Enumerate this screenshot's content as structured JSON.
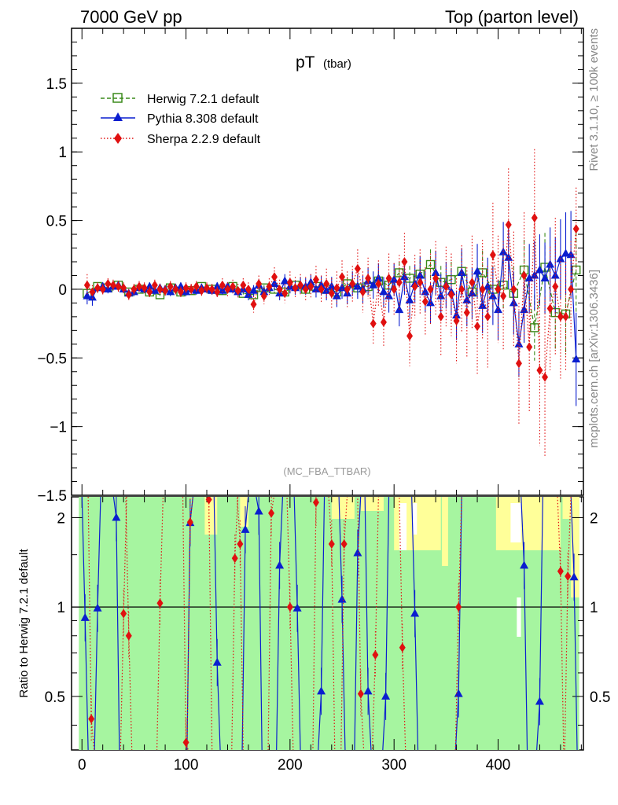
{
  "header": {
    "left": "7000 GeV pp",
    "right": "Top (parton level)"
  },
  "side_text": {
    "rivet": "Rivet 3.1.10, ≥ 100k events",
    "mcplots": "mcplots.cern.ch [arXiv:1306.3436]"
  },
  "chart_data": [
    {
      "type": "line",
      "title": "pT",
      "title_sub": "(tbar)",
      "watermark": "(MC_FBA_TTBAR)",
      "xlim": [
        -10,
        482
      ],
      "ylim": [
        -1.5,
        1.9
      ],
      "yticks": [
        "1.5",
        "1",
        "0.5",
        "0",
        "−0.5",
        "−1",
        "−1.5"
      ],
      "ytick_values": [
        1.5,
        1,
        0.5,
        0,
        -0.5,
        -1,
        -1.5
      ],
      "legend_position": "top-left",
      "series": [
        {
          "name": "Herwig 7.2.1 default",
          "color": "#3a8a1a",
          "marker": "open-square",
          "line": "dashed",
          "x": [
            5,
            15,
            25,
            35,
            45,
            55,
            65,
            75,
            85,
            95,
            105,
            115,
            125,
            135,
            145,
            155,
            165,
            175,
            185,
            195,
            205,
            215,
            225,
            235,
            245,
            255,
            265,
            275,
            285,
            295,
            305,
            315,
            325,
            335,
            345,
            355,
            365,
            375,
            385,
            395,
            405,
            415,
            425,
            435,
            445,
            455,
            465,
            475
          ],
          "y": [
            -0.03,
            0.02,
            0.01,
            0.03,
            -0.02,
            0.0,
            -0.02,
            -0.04,
            0.01,
            -0.02,
            -0.01,
            0.02,
            0.0,
            -0.01,
            0.02,
            -0.03,
            -0.04,
            0.01,
            0.0,
            -0.02,
            0.03,
            0.0,
            0.02,
            0.0,
            -0.02,
            0.04,
            0.01,
            0.02,
            0.06,
            0.03,
            0.12,
            0.08,
            0.11,
            0.18,
            0.05,
            0.07,
            0.13,
            -0.02,
            0.12,
            0.0,
            0.03,
            -0.03,
            0.14,
            -0.28,
            0.16,
            -0.17,
            -0.18,
            0.14
          ],
          "err": [
            0.02,
            0.02,
            0.02,
            0.02,
            0.02,
            0.02,
            0.02,
            0.02,
            0.02,
            0.02,
            0.02,
            0.02,
            0.02,
            0.02,
            0.02,
            0.02,
            0.02,
            0.02,
            0.03,
            0.03,
            0.03,
            0.03,
            0.04,
            0.04,
            0.04,
            0.05,
            0.05,
            0.06,
            0.07,
            0.07,
            0.08,
            0.09,
            0.1,
            0.11,
            0.12,
            0.13,
            0.14,
            0.15,
            0.16,
            0.17,
            0.18,
            0.2,
            0.22,
            0.24,
            0.25,
            0.27,
            0.3,
            0.32
          ]
        },
        {
          "name": "Pythia 8.308 default",
          "color": "#0a1ecf",
          "marker": "filled-triangle",
          "line": "solid",
          "x": [
            5,
            10,
            15,
            20,
            25,
            30,
            35,
            40,
            45,
            50,
            55,
            60,
            65,
            70,
            75,
            80,
            85,
            90,
            95,
            100,
            105,
            110,
            115,
            120,
            125,
            130,
            135,
            140,
            145,
            150,
            155,
            160,
            165,
            170,
            175,
            180,
            185,
            190,
            195,
            200,
            205,
            210,
            215,
            220,
            225,
            230,
            235,
            240,
            245,
            250,
            255,
            260,
            265,
            270,
            275,
            280,
            285,
            290,
            295,
            300,
            305,
            310,
            315,
            320,
            325,
            330,
            335,
            340,
            345,
            350,
            355,
            360,
            365,
            370,
            375,
            380,
            385,
            390,
            395,
            400,
            405,
            410,
            415,
            420,
            425,
            430,
            435,
            440,
            445,
            450,
            455,
            460,
            465,
            470,
            475
          ],
          "y": [
            -0.05,
            -0.06,
            0.01,
            0.02,
            0.0,
            0.02,
            0.03,
            0.0,
            -0.03,
            -0.02,
            0.01,
            0.0,
            0.02,
            -0.01,
            0.01,
            0.0,
            -0.02,
            0.01,
            0.02,
            -0.02,
            0.0,
            -0.01,
            0.01,
            0.0,
            -0.01,
            0.02,
            -0.01,
            0.02,
            0.0,
            -0.02,
            0.0,
            -0.04,
            -0.01,
            0.03,
            -0.02,
            0.01,
            0.04,
            -0.03,
            0.06,
            0.02,
            0.01,
            0.03,
            0.02,
            0.05,
            0.0,
            0.03,
            -0.01,
            0.02,
            -0.05,
            0.01,
            -0.03,
            0.04,
            0.02,
            0.0,
            0.06,
            0.03,
            0.08,
            -0.02,
            -0.05,
            0.07,
            -0.15,
            0.09,
            -0.08,
            0.04,
            0.1,
            -0.02,
            -0.1,
            0.12,
            -0.05,
            0.03,
            -0.02,
            -0.19,
            0.12,
            -0.08,
            -0.03,
            0.13,
            -0.12,
            0.02,
            -0.05,
            -0.15,
            0.27,
            0.23,
            -0.1,
            -0.4,
            -0.15,
            0.08,
            0.1,
            0.14,
            0.08,
            0.18,
            0.1,
            0.22,
            0.26,
            0.25,
            -0.51
          ],
          "err": [
            0.06,
            0.06,
            0.03,
            0.03,
            0.03,
            0.03,
            0.03,
            0.03,
            0.03,
            0.03,
            0.03,
            0.03,
            0.03,
            0.03,
            0.03,
            0.03,
            0.03,
            0.03,
            0.03,
            0.03,
            0.03,
            0.03,
            0.03,
            0.03,
            0.03,
            0.03,
            0.03,
            0.03,
            0.03,
            0.03,
            0.03,
            0.04,
            0.04,
            0.04,
            0.04,
            0.04,
            0.05,
            0.05,
            0.05,
            0.05,
            0.05,
            0.06,
            0.06,
            0.06,
            0.06,
            0.07,
            0.07,
            0.07,
            0.08,
            0.08,
            0.08,
            0.09,
            0.09,
            0.1,
            0.1,
            0.1,
            0.11,
            0.11,
            0.12,
            0.12,
            0.12,
            0.13,
            0.13,
            0.14,
            0.14,
            0.15,
            0.15,
            0.16,
            0.16,
            0.17,
            0.17,
            0.18,
            0.18,
            0.19,
            0.19,
            0.2,
            0.2,
            0.21,
            0.21,
            0.22,
            0.22,
            0.23,
            0.23,
            0.24,
            0.24,
            0.25,
            0.25,
            0.26,
            0.26,
            0.27,
            0.28,
            0.29,
            0.3,
            0.32,
            0.34
          ]
        },
        {
          "name": "Sherpa 2.2.9 default",
          "color": "#e01010",
          "marker": "filled-diamond",
          "line": "dotted",
          "x": [
            5,
            10,
            15,
            20,
            25,
            30,
            35,
            40,
            45,
            50,
            55,
            60,
            65,
            70,
            75,
            80,
            85,
            90,
            95,
            100,
            105,
            110,
            115,
            120,
            125,
            130,
            135,
            140,
            145,
            150,
            155,
            160,
            165,
            170,
            175,
            180,
            185,
            190,
            195,
            200,
            205,
            210,
            215,
            220,
            225,
            230,
            235,
            240,
            245,
            250,
            255,
            260,
            265,
            270,
            275,
            280,
            285,
            290,
            295,
            300,
            305,
            310,
            315,
            320,
            325,
            330,
            335,
            340,
            345,
            350,
            355,
            360,
            365,
            370,
            375,
            380,
            385,
            390,
            395,
            400,
            405,
            410,
            415,
            420,
            425,
            430,
            435,
            440,
            445,
            450,
            455,
            460,
            465,
            470,
            475
          ],
          "y": [
            0.03,
            -0.02,
            0.01,
            0.0,
            0.04,
            0.03,
            0.02,
            0.01,
            -0.04,
            0.0,
            0.02,
            0.01,
            -0.02,
            0.03,
            0.0,
            -0.01,
            0.02,
            0.0,
            -0.02,
            0.01,
            0.0,
            0.02,
            -0.01,
            0.01,
            0.0,
            -0.02,
            0.03,
            0.0,
            0.02,
            -0.01,
            0.03,
            0.0,
            -0.11,
            0.04,
            -0.05,
            0.02,
            0.09,
            0.0,
            -0.03,
            0.05,
            0.01,
            0.03,
            0.0,
            0.02,
            0.07,
            0.0,
            0.04,
            -0.03,
            0.01,
            0.09,
            0.0,
            0.04,
            0.15,
            -0.02,
            0.08,
            -0.25,
            0.04,
            -0.24,
            0.08,
            0.0,
            0.05,
            0.2,
            -0.34,
            0.02,
            0.05,
            -0.09,
            0.0,
            0.08,
            -0.2,
            0.02,
            -0.04,
            -0.23,
            0.0,
            -0.17,
            0.05,
            -0.27,
            0.0,
            -0.2,
            0.25,
            0.0,
            -0.05,
            0.47,
            0.0,
            -0.54,
            0.1,
            -0.42,
            0.52,
            -0.59,
            -0.64,
            -0.14,
            0.02,
            -0.2,
            -0.2,
            0.0,
            0.44
          ],
          "err": [
            0.08,
            0.05,
            0.04,
            0.04,
            0.04,
            0.04,
            0.04,
            0.04,
            0.04,
            0.04,
            0.04,
            0.04,
            0.04,
            0.04,
            0.04,
            0.04,
            0.04,
            0.04,
            0.04,
            0.04,
            0.04,
            0.04,
            0.04,
            0.04,
            0.04,
            0.04,
            0.05,
            0.05,
            0.05,
            0.05,
            0.05,
            0.05,
            0.06,
            0.06,
            0.06,
            0.06,
            0.07,
            0.07,
            0.07,
            0.08,
            0.08,
            0.08,
            0.09,
            0.09,
            0.1,
            0.1,
            0.11,
            0.11,
            0.12,
            0.12,
            0.13,
            0.13,
            0.14,
            0.15,
            0.15,
            0.16,
            0.17,
            0.18,
            0.18,
            0.19,
            0.2,
            0.21,
            0.22,
            0.23,
            0.24,
            0.25,
            0.26,
            0.27,
            0.28,
            0.29,
            0.3,
            0.31,
            0.32,
            0.33,
            0.34,
            0.35,
            0.36,
            0.37,
            0.38,
            0.39,
            0.4,
            0.41,
            0.42,
            0.44,
            0.46,
            0.48,
            0.5,
            0.55,
            0.58,
            0.45,
            0.5,
            0.45,
            0.4,
            0.35,
            0.3
          ]
        }
      ]
    },
    {
      "type": "line",
      "ylabel": "Ratio to Herwig 7.2.1 default",
      "xlim": [
        -10,
        482
      ],
      "ylim": [
        0.33,
        2.35
      ],
      "yticks": [
        "2",
        "1",
        "0.5"
      ],
      "ytick_values": [
        2,
        1,
        0.5
      ],
      "xticks": [
        "0",
        "100",
        "200",
        "300",
        "400"
      ],
      "xtick_values": [
        0,
        100,
        200,
        300,
        400
      ],
      "reference_line": 1,
      "bands": {
        "inner_color": "#a6f5a0",
        "outer_color": "#ffff99",
        "description": "MC uncertainty bands spanning most of the range"
      },
      "series": [
        {
          "name": "Pythia 8.308 default",
          "color": "#0a1ecf",
          "x": [
            3,
            15,
            33,
            104,
            130,
            157,
            170,
            190,
            207,
            230,
            250,
            265,
            275,
            292,
            320,
            362,
            425,
            440,
            473
          ],
          "y": [
            0.92,
            0.99,
            2.0,
            1.92,
            0.65,
            1.82,
            2.1,
            1.38,
            0.99,
            0.52,
            1.06,
            1.52,
            0.52,
            0.5,
            0.95,
            0.51,
            1.38,
            0.48,
            1.26
          ]
        },
        {
          "name": "Sherpa 2.2.9 default",
          "color": "#e01010",
          "x": [
            9,
            40,
            45,
            75,
            100,
            104,
            122,
            147,
            152,
            182,
            200,
            225,
            240,
            252,
            268,
            282,
            308,
            362,
            460,
            467
          ],
          "y": [
            0.42,
            0.95,
            0.8,
            1.03,
            0.35,
            1.93,
            2.3,
            1.46,
            1.63,
            2.07,
            1.0,
            2.25,
            1.63,
            1.63,
            0.51,
            0.69,
            0.73,
            1.0,
            1.32,
            1.27
          ]
        }
      ]
    }
  ]
}
